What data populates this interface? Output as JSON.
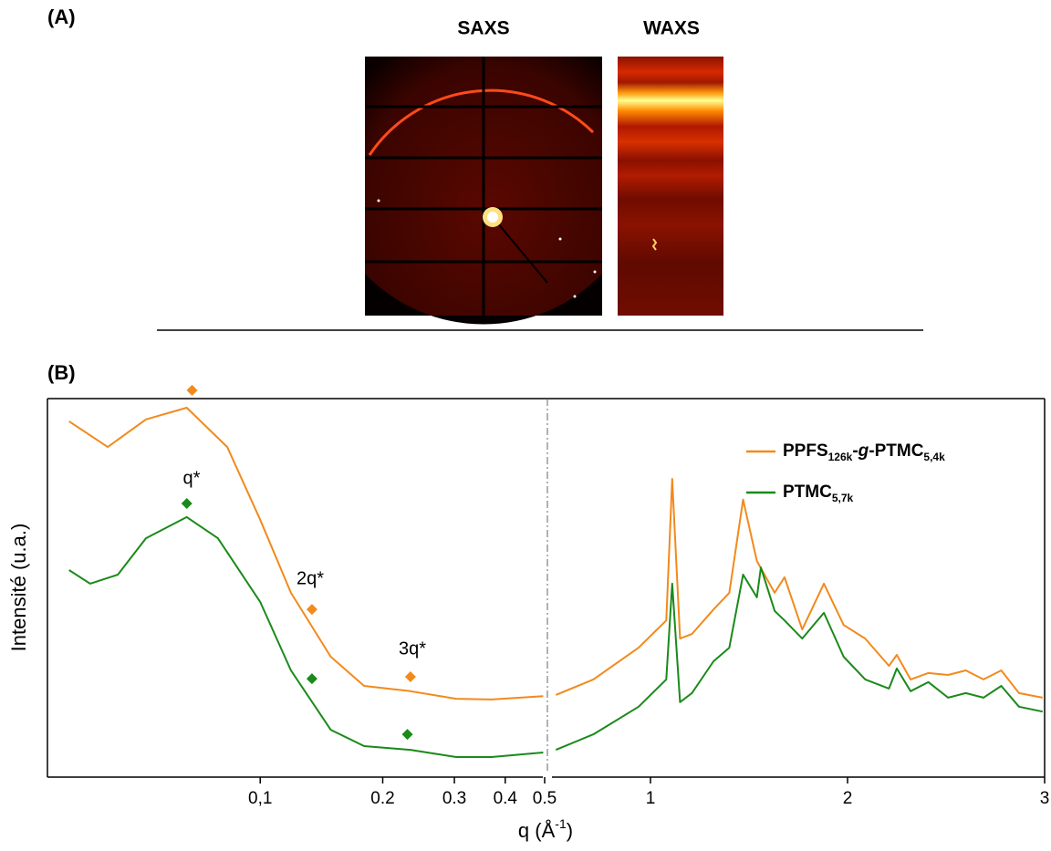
{
  "panel_labels": [
    "(A)",
    "(B)"
  ],
  "images": {
    "titles": [
      "SAXS",
      "WAXS"
    ]
  },
  "chart_data": {
    "type": "line",
    "ylabel": "Intensité (u.a.)",
    "xlabel": [
      {
        "text": "q (Å"
      },
      {
        "text": "-1",
        "style": "sup"
      },
      {
        "text": ")"
      }
    ],
    "ylim": [
      0,
      100
    ],
    "panels": [
      {
        "scale": "log",
        "xlim": [
          0.03,
          0.5
        ],
        "xticks": [
          {
            "value": 0.1,
            "label": "0,1"
          },
          0.2,
          0.3,
          0.4,
          0.5
        ]
      },
      {
        "scale": "linear",
        "xlim": [
          0.5,
          3
        ],
        "xticks": [
          1,
          2,
          3
        ]
      }
    ],
    "series": [
      {
        "name": [
          {
            "text": "PPFS"
          },
          {
            "text": "126k",
            "style": "sub"
          },
          {
            "text": "-"
          },
          {
            "text": "g",
            "style": "italic"
          },
          {
            "text": "-PTMC"
          },
          {
            "text": "5,4k",
            "style": "sub"
          }
        ],
        "color": "#f28a1c",
        "segments": [
          {
            "x": [
              0.0339,
              0.0422,
              0.0524,
              0.066,
              0.083,
              0.1,
              0.119,
              0.149,
              0.18,
              0.234,
              0.303,
              0.37,
              0.496
            ],
            "values": [
              94,
              87.2,
              94.5,
              97.6,
              87.2,
              68,
              48.7,
              31.8,
              24.1,
              22.7,
              20.7,
              20.5,
              21.4
            ]
          },
          {
            "x": [
              0.52,
              0.71,
              0.94,
              1.08,
              1.11,
              1.15,
              1.21,
              1.32,
              1.4,
              1.47,
              1.54,
              1.63,
              1.68,
              1.77,
              1.88,
              1.98,
              2.09,
              2.21,
              2.25,
              2.32,
              2.41,
              2.51,
              2.6,
              2.69,
              2.78,
              2.87,
              2.99
            ],
            "values": [
              21.7,
              25.8,
              34.2,
              41.4,
              78.8,
              36.6,
              37.8,
              44.3,
              48.7,
              73.3,
              57.1,
              48.7,
              52.8,
              39,
              51.1,
              40.2,
              36.6,
              29.4,
              32.3,
              25.8,
              27.5,
              27,
              28.2,
              25.8,
              28.2,
              22.2,
              21
            ]
          }
        ]
      },
      {
        "name": [
          {
            "text": "PTMC"
          },
          {
            "text": "5,7k",
            "style": "sub"
          }
        ],
        "color": "#1a8a1a",
        "segments": [
          {
            "x": [
              0.0339,
              0.0382,
              0.0447,
              0.0524,
              0.066,
              0.0787,
              0.1,
              0.119,
              0.149,
              0.18,
              0.234,
              0.303,
              0.37,
              0.496
            ],
            "values": [
              54.7,
              51.1,
              53.5,
              63.1,
              68.7,
              63.1,
              46.3,
              28.2,
              12.5,
              8.2,
              7.2,
              5.3,
              5.3,
              6.5
            ]
          },
          {
            "x": [
              0.52,
              0.71,
              0.94,
              1.08,
              1.11,
              1.15,
              1.21,
              1.32,
              1.4,
              1.47,
              1.54,
              1.56,
              1.63,
              1.68,
              1.77,
              1.88,
              1.98,
              2.09,
              2.21,
              2.25,
              2.32,
              2.41,
              2.51,
              2.6,
              2.69,
              2.78,
              2.87,
              2.99
            ],
            "values": [
              7.2,
              11.3,
              18.6,
              25.8,
              51.1,
              19.8,
              22.2,
              30.6,
              34.2,
              53.5,
              47.5,
              55.4,
              43.9,
              41.4,
              36.6,
              43.4,
              31.8,
              25.8,
              23.4,
              28.7,
              22.7,
              25.1,
              21,
              22.2,
              21,
              24.1,
              18.6,
              17.3
            ]
          }
        ]
      }
    ],
    "markers": [
      {
        "x": 0.068,
        "value": 102.2,
        "color": "#f28a1c"
      },
      {
        "x": 0.066,
        "value": 72.3,
        "color": "#1a8a1a"
      },
      {
        "x": 0.134,
        "value": 44.3,
        "color": "#f28a1c"
      },
      {
        "x": 0.134,
        "value": 26,
        "color": "#1a8a1a"
      },
      {
        "x": 0.234,
        "value": 26.5,
        "color": "#f28a1c"
      },
      {
        "x": 0.23,
        "value": 11.3,
        "color": "#1a8a1a"
      }
    ],
    "annotations": [
      "q*",
      "2q*",
      "3q*"
    ]
  }
}
